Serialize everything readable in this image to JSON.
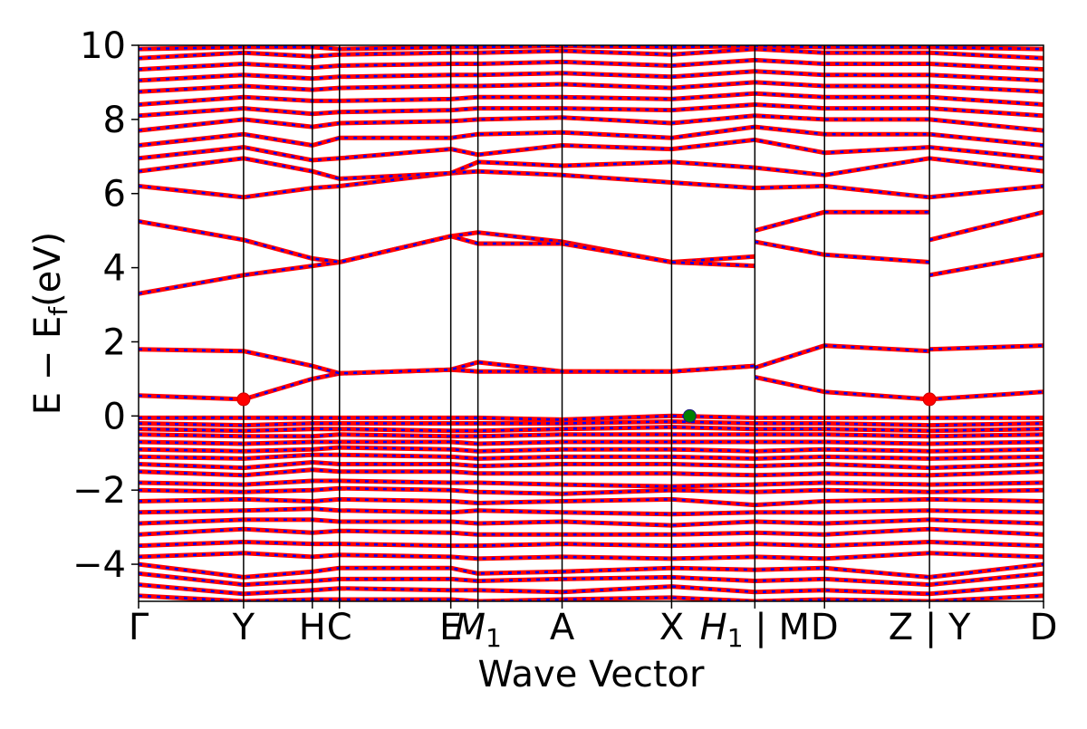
{
  "chart_data": {
    "type": "line",
    "title": "",
    "xlabel": "Wave Vector",
    "ylabel": "E − E",
    "ylabel_subscript": "f",
    "ylabel_unit": "(eV)",
    "ylim": [
      -5,
      10
    ],
    "yticks": [
      {
        "value": -4,
        "label": "−4"
      },
      {
        "value": -2,
        "label": "−2"
      },
      {
        "value": 0,
        "label": "0"
      },
      {
        "value": 2,
        "label": "2"
      },
      {
        "value": 4,
        "label": "4"
      },
      {
        "value": 6,
        "label": "6"
      },
      {
        "value": 8,
        "label": "8"
      },
      {
        "value": 10,
        "label": "10"
      }
    ],
    "xlim": [
      0,
      1
    ],
    "kpoints": [
      {
        "pos": 0.0,
        "label": "Γ"
      },
      {
        "pos": 0.116,
        "label": "Y"
      },
      {
        "pos": 0.192,
        "label": "H"
      },
      {
        "pos": 0.222,
        "label": "C"
      },
      {
        "pos": 0.345,
        "label": "E"
      },
      {
        "pos": 0.375,
        "label": "M",
        "sub": "1",
        "italic": true
      },
      {
        "pos": 0.468,
        "label": "A"
      },
      {
        "pos": 0.589,
        "label": "X"
      },
      {
        "pos": 0.681,
        "label": "H",
        "sub": "1",
        "italic": true,
        "suffix": " | M"
      },
      {
        "pos": 0.758,
        "label": "D"
      },
      {
        "pos": 0.874,
        "label": "Z | Y"
      },
      {
        "pos": 1.0,
        "label": "D"
      }
    ],
    "spin_colors": {
      "up": "#ff0000",
      "down": "#0000ff"
    },
    "series": [
      {
        "x": [
          0.0,
          0.116,
          0.192,
          0.222,
          0.345,
          0.375,
          0.468,
          0.589,
          0.681
        ],
        "y": [
          0.55,
          0.45,
          1.0,
          1.15,
          1.25,
          1.2,
          1.2,
          1.2,
          1.35
        ]
      },
      {
        "x": [
          0.0,
          0.116,
          0.192,
          0.222,
          0.345,
          0.375,
          0.468,
          0.589,
          0.681
        ],
        "y": [
          1.8,
          1.75,
          1.35,
          1.15,
          1.25,
          1.45,
          1.2,
          1.2,
          1.35
        ]
      },
      {
        "x": [
          0.0,
          0.116,
          0.192,
          0.222,
          0.345,
          0.375,
          0.468,
          0.589,
          0.681
        ],
        "y": [
          3.3,
          3.8,
          4.05,
          4.15,
          4.85,
          4.95,
          4.7,
          4.15,
          4.3
        ]
      },
      {
        "x": [
          0.0,
          0.116,
          0.192,
          0.222,
          0.345,
          0.375,
          0.468,
          0.589,
          0.681
        ],
        "y": [
          5.25,
          4.75,
          4.25,
          4.15,
          4.85,
          4.65,
          4.65,
          4.15,
          4.05
        ]
      },
      {
        "x": [
          0.681,
          0.758,
          0.874
        ],
        "y": [
          1.05,
          0.65,
          0.45
        ]
      },
      {
        "x": [
          0.681,
          0.758,
          0.874
        ],
        "y": [
          1.3,
          1.9,
          1.75
        ]
      },
      {
        "x": [
          0.681,
          0.758,
          0.874
        ],
        "y": [
          4.7,
          4.35,
          4.15
        ]
      },
      {
        "x": [
          0.681,
          0.758,
          0.874
        ],
        "y": [
          5.0,
          5.5,
          5.5
        ]
      },
      {
        "x": [
          0.874,
          1.0
        ],
        "y": [
          0.45,
          0.65
        ]
      },
      {
        "x": [
          0.874,
          1.0
        ],
        "y": [
          1.8,
          1.9
        ]
      },
      {
        "x": [
          0.874,
          1.0
        ],
        "y": [
          3.8,
          4.35
        ]
      },
      {
        "x": [
          0.874,
          1.0
        ],
        "y": [
          4.75,
          5.5
        ]
      },
      {
        "x": [
          0.0,
          0.116,
          0.192,
          0.222,
          0.345,
          0.375,
          0.468,
          0.589,
          0.681,
          0.758,
          0.874,
          1.0
        ],
        "y": [
          6.2,
          5.9,
          6.15,
          6.2,
          6.55,
          6.6,
          6.5,
          6.3,
          6.15,
          6.2,
          5.9,
          6.2
        ]
      },
      {
        "x": [
          0.0,
          0.116,
          0.192,
          0.222,
          0.345,
          0.375,
          0.468,
          0.589,
          0.681,
          0.758,
          0.874,
          1.0
        ],
        "y": [
          6.6,
          6.95,
          6.6,
          6.4,
          6.55,
          6.85,
          6.75,
          6.85,
          6.7,
          6.5,
          6.95,
          6.6
        ]
      },
      {
        "x": [
          0.0,
          0.116,
          0.192,
          0.222,
          0.345,
          0.375,
          0.468,
          0.589,
          0.681,
          0.758,
          0.874,
          1.0
        ],
        "y": [
          6.95,
          7.25,
          6.9,
          6.95,
          7.2,
          7.05,
          7.3,
          7.2,
          7.45,
          7.1,
          7.25,
          6.95
        ]
      },
      {
        "x": [
          0.0,
          0.116,
          0.192,
          0.222,
          0.345,
          0.375,
          0.468,
          0.589,
          0.681,
          0.758,
          0.874,
          1.0
        ],
        "y": [
          7.3,
          7.6,
          7.3,
          7.5,
          7.5,
          7.6,
          7.65,
          7.5,
          7.8,
          7.6,
          7.6,
          7.3
        ]
      },
      {
        "x": [
          0.0,
          0.116,
          0.192,
          0.222,
          0.345,
          0.375,
          0.468,
          0.589,
          0.681,
          0.758,
          0.874,
          1.0
        ],
        "y": [
          7.7,
          8.0,
          7.8,
          7.9,
          7.95,
          8.0,
          8.05,
          7.9,
          8.1,
          8.0,
          8.0,
          7.7
        ]
      },
      {
        "x": [
          0.0,
          0.116,
          0.192,
          0.222,
          0.345,
          0.375,
          0.468,
          0.589,
          0.681,
          0.758,
          0.874,
          1.0
        ],
        "y": [
          8.1,
          8.3,
          8.15,
          8.2,
          8.25,
          8.3,
          8.3,
          8.25,
          8.4,
          8.3,
          8.3,
          8.1
        ]
      },
      {
        "x": [
          0.0,
          0.116,
          0.192,
          0.222,
          0.345,
          0.375,
          0.468,
          0.589,
          0.681,
          0.758,
          0.874,
          1.0
        ],
        "y": [
          8.4,
          8.6,
          8.5,
          8.5,
          8.55,
          8.6,
          8.6,
          8.55,
          8.7,
          8.6,
          8.6,
          8.4
        ]
      },
      {
        "x": [
          0.0,
          0.116,
          0.192,
          0.222,
          0.345,
          0.375,
          0.468,
          0.589,
          0.681,
          0.758,
          0.874,
          1.0
        ],
        "y": [
          8.75,
          8.9,
          8.8,
          8.85,
          8.9,
          8.9,
          8.95,
          8.85,
          9.0,
          8.9,
          8.9,
          8.75
        ]
      },
      {
        "x": [
          0.0,
          0.116,
          0.192,
          0.222,
          0.345,
          0.375,
          0.468,
          0.589,
          0.681,
          0.758,
          0.874,
          1.0
        ],
        "y": [
          9.05,
          9.2,
          9.1,
          9.15,
          9.2,
          9.2,
          9.25,
          9.15,
          9.3,
          9.2,
          9.2,
          9.05
        ]
      },
      {
        "x": [
          0.0,
          0.116,
          0.192,
          0.222,
          0.345,
          0.375,
          0.468,
          0.589,
          0.681,
          0.758,
          0.874,
          1.0
        ],
        "y": [
          9.35,
          9.5,
          9.4,
          9.45,
          9.5,
          9.5,
          9.55,
          9.45,
          9.6,
          9.5,
          9.5,
          9.35
        ]
      },
      {
        "x": [
          0.0,
          0.116,
          0.192,
          0.222,
          0.345,
          0.375,
          0.468,
          0.589,
          0.681,
          0.758,
          0.874,
          1.0
        ],
        "y": [
          9.65,
          9.8,
          9.7,
          9.75,
          9.8,
          9.8,
          9.85,
          9.75,
          9.9,
          9.8,
          9.8,
          9.65
        ]
      },
      {
        "x": [
          0.0,
          0.116,
          0.192,
          0.222,
          0.345,
          0.375,
          0.468,
          0.589,
          0.681,
          0.758,
          0.874,
          1.0
        ],
        "y": [
          9.9,
          9.95,
          9.95,
          9.9,
          9.95,
          9.95,
          9.98,
          9.95,
          9.98,
          9.95,
          9.95,
          9.9
        ]
      },
      {
        "x": [
          0.0,
          0.116,
          0.192,
          0.222,
          0.345,
          0.375,
          0.468,
          0.589,
          0.681,
          0.758,
          0.874,
          1.0
        ],
        "y": [
          -0.05,
          -0.05,
          -0.05,
          -0.05,
          -0.05,
          -0.05,
          -0.1,
          0.0,
          -0.05,
          -0.05,
          -0.05,
          -0.05
        ]
      },
      {
        "x": [
          0.0,
          0.116,
          0.192,
          0.222,
          0.345,
          0.375,
          0.468,
          0.589,
          0.681,
          0.758,
          0.874,
          1.0
        ],
        "y": [
          -0.2,
          -0.25,
          -0.2,
          -0.2,
          -0.2,
          -0.2,
          -0.2,
          -0.15,
          -0.2,
          -0.2,
          -0.25,
          -0.2
        ]
      },
      {
        "x": [
          0.0,
          0.116,
          0.192,
          0.222,
          0.345,
          0.375,
          0.468,
          0.589,
          0.681,
          0.758,
          0.874,
          1.0
        ],
        "y": [
          -0.35,
          -0.4,
          -0.35,
          -0.35,
          -0.4,
          -0.4,
          -0.35,
          -0.3,
          -0.35,
          -0.35,
          -0.4,
          -0.35
        ]
      },
      {
        "x": [
          0.0,
          0.116,
          0.192,
          0.222,
          0.345,
          0.375,
          0.468,
          0.589,
          0.681,
          0.758,
          0.874,
          1.0
        ],
        "y": [
          -0.5,
          -0.55,
          -0.55,
          -0.5,
          -0.55,
          -0.55,
          -0.5,
          -0.5,
          -0.5,
          -0.5,
          -0.55,
          -0.5
        ]
      },
      {
        "x": [
          0.0,
          0.116,
          0.192,
          0.222,
          0.345,
          0.375,
          0.468,
          0.589,
          0.681,
          0.758,
          0.874,
          1.0
        ],
        "y": [
          -0.7,
          -0.75,
          -0.7,
          -0.7,
          -0.7,
          -0.75,
          -0.7,
          -0.7,
          -0.7,
          -0.7,
          -0.75,
          -0.7
        ]
      },
      {
        "x": [
          0.0,
          0.116,
          0.192,
          0.222,
          0.345,
          0.375,
          0.468,
          0.589,
          0.681,
          0.758,
          0.874,
          1.0
        ],
        "y": [
          -0.9,
          -0.95,
          -0.9,
          -0.85,
          -0.9,
          -0.95,
          -0.9,
          -0.9,
          -0.95,
          -0.9,
          -0.95,
          -0.9
        ]
      },
      {
        "x": [
          0.0,
          0.116,
          0.192,
          0.222,
          0.345,
          0.375,
          0.468,
          0.589,
          0.681,
          0.758,
          0.874,
          1.0
        ],
        "y": [
          -1.1,
          -1.15,
          -1.05,
          -1.05,
          -1.1,
          -1.15,
          -1.1,
          -1.1,
          -1.15,
          -1.1,
          -1.15,
          -1.1
        ]
      },
      {
        "x": [
          0.0,
          0.116,
          0.192,
          0.222,
          0.345,
          0.375,
          0.468,
          0.589,
          0.681,
          0.758,
          0.874,
          1.0
        ],
        "y": [
          -1.3,
          -1.4,
          -1.25,
          -1.3,
          -1.3,
          -1.35,
          -1.3,
          -1.3,
          -1.35,
          -1.3,
          -1.4,
          -1.3
        ]
      },
      {
        "x": [
          0.0,
          0.116,
          0.192,
          0.222,
          0.345,
          0.375,
          0.468,
          0.589,
          0.681,
          0.758,
          0.874,
          1.0
        ],
        "y": [
          -1.5,
          -1.6,
          -1.45,
          -1.5,
          -1.5,
          -1.55,
          -1.55,
          -1.55,
          -1.6,
          -1.55,
          -1.6,
          -1.5
        ]
      },
      {
        "x": [
          0.0,
          0.116,
          0.192,
          0.222,
          0.345,
          0.375,
          0.468,
          0.589,
          0.681,
          0.758,
          0.874,
          1.0
        ],
        "y": [
          -1.8,
          -1.85,
          -1.75,
          -1.75,
          -1.8,
          -1.8,
          -1.85,
          -1.9,
          -1.85,
          -1.8,
          -1.85,
          -1.8
        ]
      },
      {
        "x": [
          0.0,
          0.116,
          0.192,
          0.222,
          0.345,
          0.375,
          0.468,
          0.589,
          0.681,
          0.758,
          0.874,
          1.0
        ],
        "y": [
          -2.0,
          -2.05,
          -2.0,
          -1.95,
          -2.0,
          -2.05,
          -2.1,
          -2.0,
          -2.05,
          -2.0,
          -2.05,
          -2.0
        ]
      },
      {
        "x": [
          0.0,
          0.116,
          0.192,
          0.222,
          0.345,
          0.375,
          0.468,
          0.589,
          0.681,
          0.758,
          0.874,
          1.0
        ],
        "y": [
          -2.3,
          -2.25,
          -2.3,
          -2.25,
          -2.3,
          -2.35,
          -2.3,
          -2.25,
          -2.4,
          -2.3,
          -2.25,
          -2.3
        ]
      },
      {
        "x": [
          0.0,
          0.116,
          0.192,
          0.222,
          0.345,
          0.375,
          0.468,
          0.589,
          0.681,
          0.758,
          0.874,
          1.0
        ],
        "y": [
          -2.6,
          -2.55,
          -2.5,
          -2.55,
          -2.6,
          -2.55,
          -2.6,
          -2.65,
          -2.6,
          -2.6,
          -2.55,
          -2.6
        ]
      },
      {
        "x": [
          0.0,
          0.116,
          0.192,
          0.222,
          0.345,
          0.375,
          0.468,
          0.589,
          0.681,
          0.758,
          0.874,
          1.0
        ],
        "y": [
          -2.9,
          -2.8,
          -2.8,
          -2.85,
          -2.85,
          -2.9,
          -2.85,
          -2.95,
          -2.85,
          -2.9,
          -2.8,
          -2.9
        ]
      },
      {
        "x": [
          0.0,
          0.116,
          0.192,
          0.222,
          0.345,
          0.375,
          0.468,
          0.589,
          0.681,
          0.758,
          0.874,
          1.0
        ],
        "y": [
          -3.2,
          -3.05,
          -3.15,
          -3.1,
          -3.15,
          -3.2,
          -3.2,
          -3.2,
          -3.15,
          -3.2,
          -3.05,
          -3.2
        ]
      },
      {
        "x": [
          0.0,
          0.116,
          0.192,
          0.222,
          0.345,
          0.375,
          0.468,
          0.589,
          0.681,
          0.758,
          0.874,
          1.0
        ],
        "y": [
          -3.5,
          -3.4,
          -3.45,
          -3.45,
          -3.5,
          -3.5,
          -3.45,
          -3.5,
          -3.45,
          -3.5,
          -3.4,
          -3.5
        ]
      },
      {
        "x": [
          0.0,
          0.116,
          0.192,
          0.222,
          0.345,
          0.375,
          0.468,
          0.589,
          0.681,
          0.758,
          0.874,
          1.0
        ],
        "y": [
          -3.8,
          -3.7,
          -3.8,
          -3.75,
          -3.8,
          -3.85,
          -3.8,
          -3.85,
          -3.8,
          -3.85,
          -3.7,
          -3.8
        ]
      },
      {
        "x": [
          0.0,
          0.116,
          0.192,
          0.222,
          0.345,
          0.375,
          0.468,
          0.589,
          0.681,
          0.758,
          0.874,
          1.0
        ],
        "y": [
          -4.0,
          -4.35,
          -4.2,
          -4.1,
          -4.1,
          -4.25,
          -4.2,
          -4.1,
          -4.15,
          -4.1,
          -4.35,
          -4.0
        ]
      },
      {
        "x": [
          0.0,
          0.116,
          0.192,
          0.222,
          0.345,
          0.375,
          0.468,
          0.589,
          0.681,
          0.758,
          0.874,
          1.0
        ],
        "y": [
          -4.25,
          -4.55,
          -4.45,
          -4.4,
          -4.4,
          -4.45,
          -4.4,
          -4.35,
          -4.45,
          -4.4,
          -4.55,
          -4.25
        ]
      },
      {
        "x": [
          0.0,
          0.116,
          0.192,
          0.222,
          0.345,
          0.375,
          0.468,
          0.589,
          0.681,
          0.758,
          0.874,
          1.0
        ],
        "y": [
          -4.55,
          -4.8,
          -4.7,
          -4.65,
          -4.7,
          -4.7,
          -4.75,
          -4.6,
          -4.75,
          -4.7,
          -4.8,
          -4.55
        ]
      },
      {
        "x": [
          0.0,
          0.116,
          0.192,
          0.222,
          0.345,
          0.375,
          0.468,
          0.589,
          0.681,
          0.758,
          0.874,
          1.0
        ],
        "y": [
          -4.85,
          -5.0,
          -4.95,
          -4.95,
          -4.95,
          -5.0,
          -4.95,
          -4.9,
          -5.0,
          -4.95,
          -5.0,
          -4.85
        ]
      }
    ],
    "markers": [
      {
        "x": 0.116,
        "y": 0.45,
        "color": "#ff0000"
      },
      {
        "x": 0.874,
        "y": 0.45,
        "color": "#ff0000"
      },
      {
        "x": 0.609,
        "y": 0.0,
        "color": "#008000"
      }
    ],
    "legend": "none",
    "grid": false
  }
}
